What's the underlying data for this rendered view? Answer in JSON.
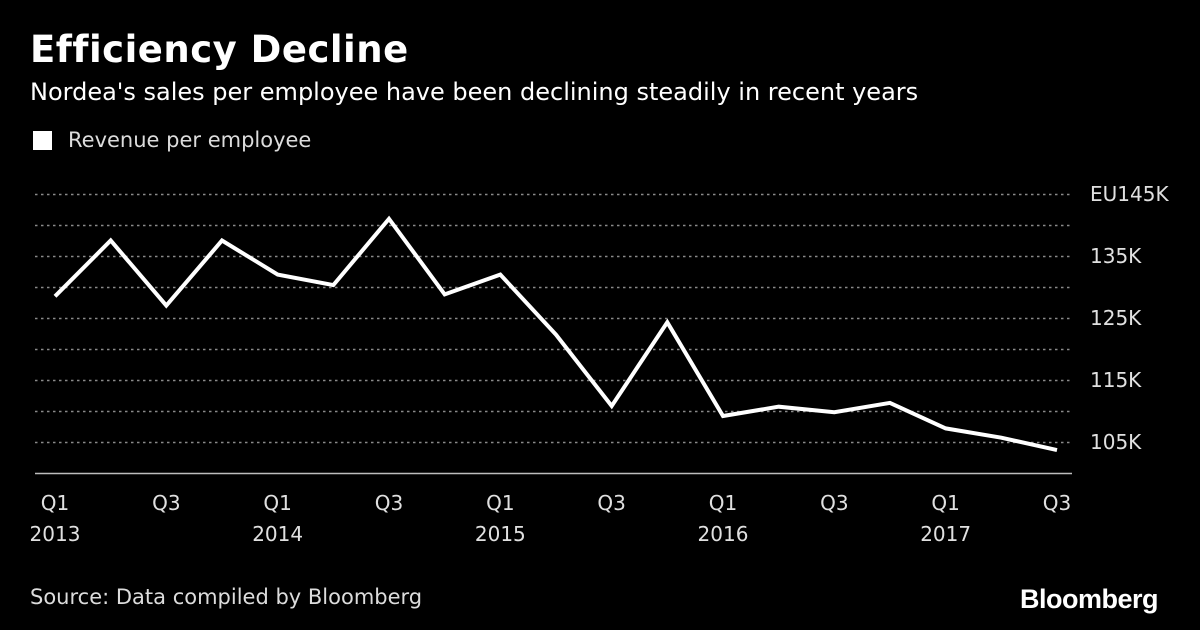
{
  "header": {
    "title": "Efficiency Decline",
    "subtitle": "Nordea's sales per employee have been declining steadily in recent years"
  },
  "legend": {
    "label": "Revenue per employee",
    "swatch_color": "#ffffff"
  },
  "footer": {
    "source": "Source: Data compiled by Bloomberg",
    "brand": "Bloomberg"
  },
  "chart_data": {
    "type": "line",
    "title": "Efficiency Decline",
    "subtitle": "Nordea's sales per employee have been declining steadily in recent years",
    "xlabel": "",
    "ylabel": "",
    "ylim": [
      100,
      148
    ],
    "yticks": [
      {
        "value": 145,
        "label": "EU145K"
      },
      {
        "value": 135,
        "label": "135K"
      },
      {
        "value": 125,
        "label": "125K"
      },
      {
        "value": 115,
        "label": "115K"
      },
      {
        "value": 105,
        "label": "105K"
      }
    ],
    "gridlines": [
      145,
      140,
      135,
      130,
      125,
      120,
      115,
      110,
      105
    ],
    "grid": true,
    "categories": [
      "Q1 2013",
      "Q2 2013",
      "Q3 2013",
      "Q4 2013",
      "Q1 2014",
      "Q2 2014",
      "Q3 2014",
      "Q4 2014",
      "Q1 2015",
      "Q2 2015",
      "Q3 2015",
      "Q4 2015",
      "Q1 2016",
      "Q2 2016",
      "Q3 2016",
      "Q4 2016",
      "Q1 2017",
      "Q2 2017",
      "Q3 2017"
    ],
    "xticks": [
      {
        "index": 0,
        "quarter": "Q1",
        "year": "2013"
      },
      {
        "index": 2,
        "quarter": "Q3",
        "year": ""
      },
      {
        "index": 4,
        "quarter": "Q1",
        "year": "2014"
      },
      {
        "index": 6,
        "quarter": "Q3",
        "year": ""
      },
      {
        "index": 8,
        "quarter": "Q1",
        "year": "2015"
      },
      {
        "index": 10,
        "quarter": "Q3",
        "year": ""
      },
      {
        "index": 12,
        "quarter": "Q1",
        "year": "2016"
      },
      {
        "index": 14,
        "quarter": "Q3",
        "year": ""
      },
      {
        "index": 16,
        "quarter": "Q1",
        "year": "2017"
      },
      {
        "index": 18,
        "quarter": "Q3",
        "year": ""
      }
    ],
    "series": [
      {
        "name": "Revenue per employee",
        "color": "#ffffff",
        "values": [
          128.5,
          137.5,
          127.0,
          137.5,
          132.0,
          130.3,
          141.0,
          128.8,
          132.0,
          122.3,
          110.8,
          124.3,
          109.2,
          110.7,
          109.8,
          111.3,
          107.2,
          105.7,
          103.7
        ]
      }
    ]
  }
}
